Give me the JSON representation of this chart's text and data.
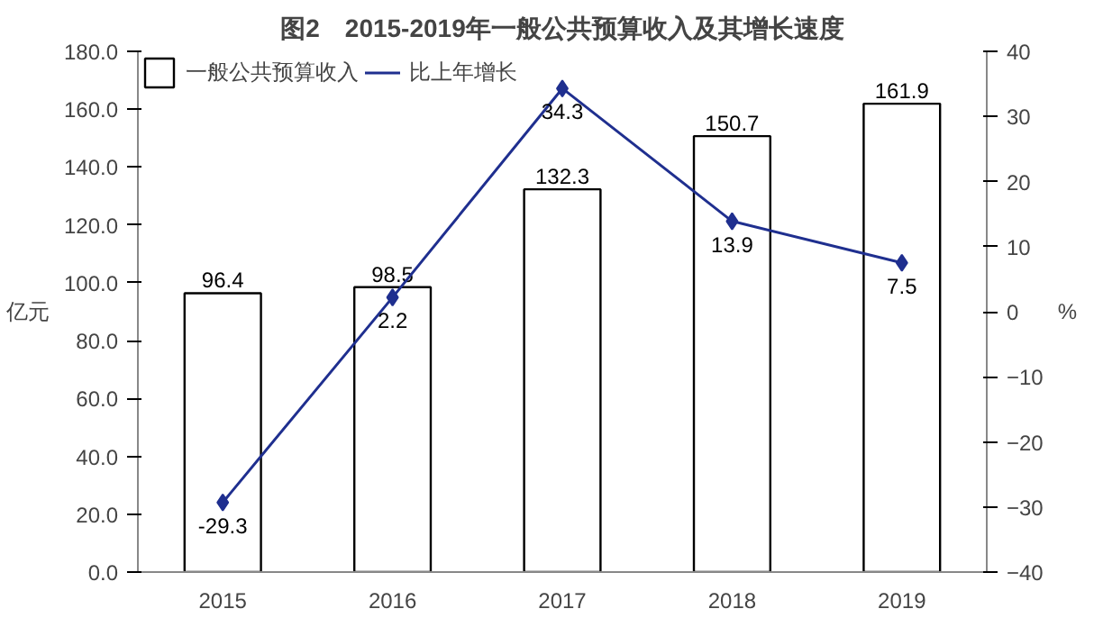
{
  "chart_data": {
    "type": "bar",
    "title": "图2　2015-2019年一般公共预算收入及其增长速度",
    "ylabel": "亿元",
    "y2label": "%",
    "categories": [
      "2015",
      "2016",
      "2017",
      "2018",
      "2019"
    ],
    "series": [
      {
        "name": "一般公共预算收入",
        "color": "#ffffff",
        "values": [
          96.4,
          98.5,
          132.3,
          150.7,
          161.9
        ]
      },
      {
        "name": "比上年增长",
        "type": "line",
        "axis": "y2",
        "color": "#1f2f8f",
        "marker": "diamond",
        "values": [
          -29.3,
          2.2,
          34.3,
          13.9,
          7.5
        ]
      }
    ],
    "ylim": [
      0,
      180
    ],
    "yticks": [
      {
        "value": 0,
        "label": "0.0"
      },
      {
        "value": 20,
        "label": "20.0"
      },
      {
        "value": 40,
        "label": "40.0"
      },
      {
        "value": 60,
        "label": "60.0"
      },
      {
        "value": 80,
        "label": "80.0"
      },
      {
        "value": 100,
        "label": "100.0"
      },
      {
        "value": 120,
        "label": "120.0"
      },
      {
        "value": 140,
        "label": "140.0"
      },
      {
        "value": 160,
        "label": "160.0"
      },
      {
        "value": 180,
        "label": "180.0"
      }
    ],
    "y2lim": [
      -40,
      40
    ],
    "y2ticks": [
      -40,
      -30,
      -20,
      -10,
      0,
      10,
      20,
      30,
      40
    ],
    "data_labels": true,
    "legend": "top left",
    "grid": false
  }
}
